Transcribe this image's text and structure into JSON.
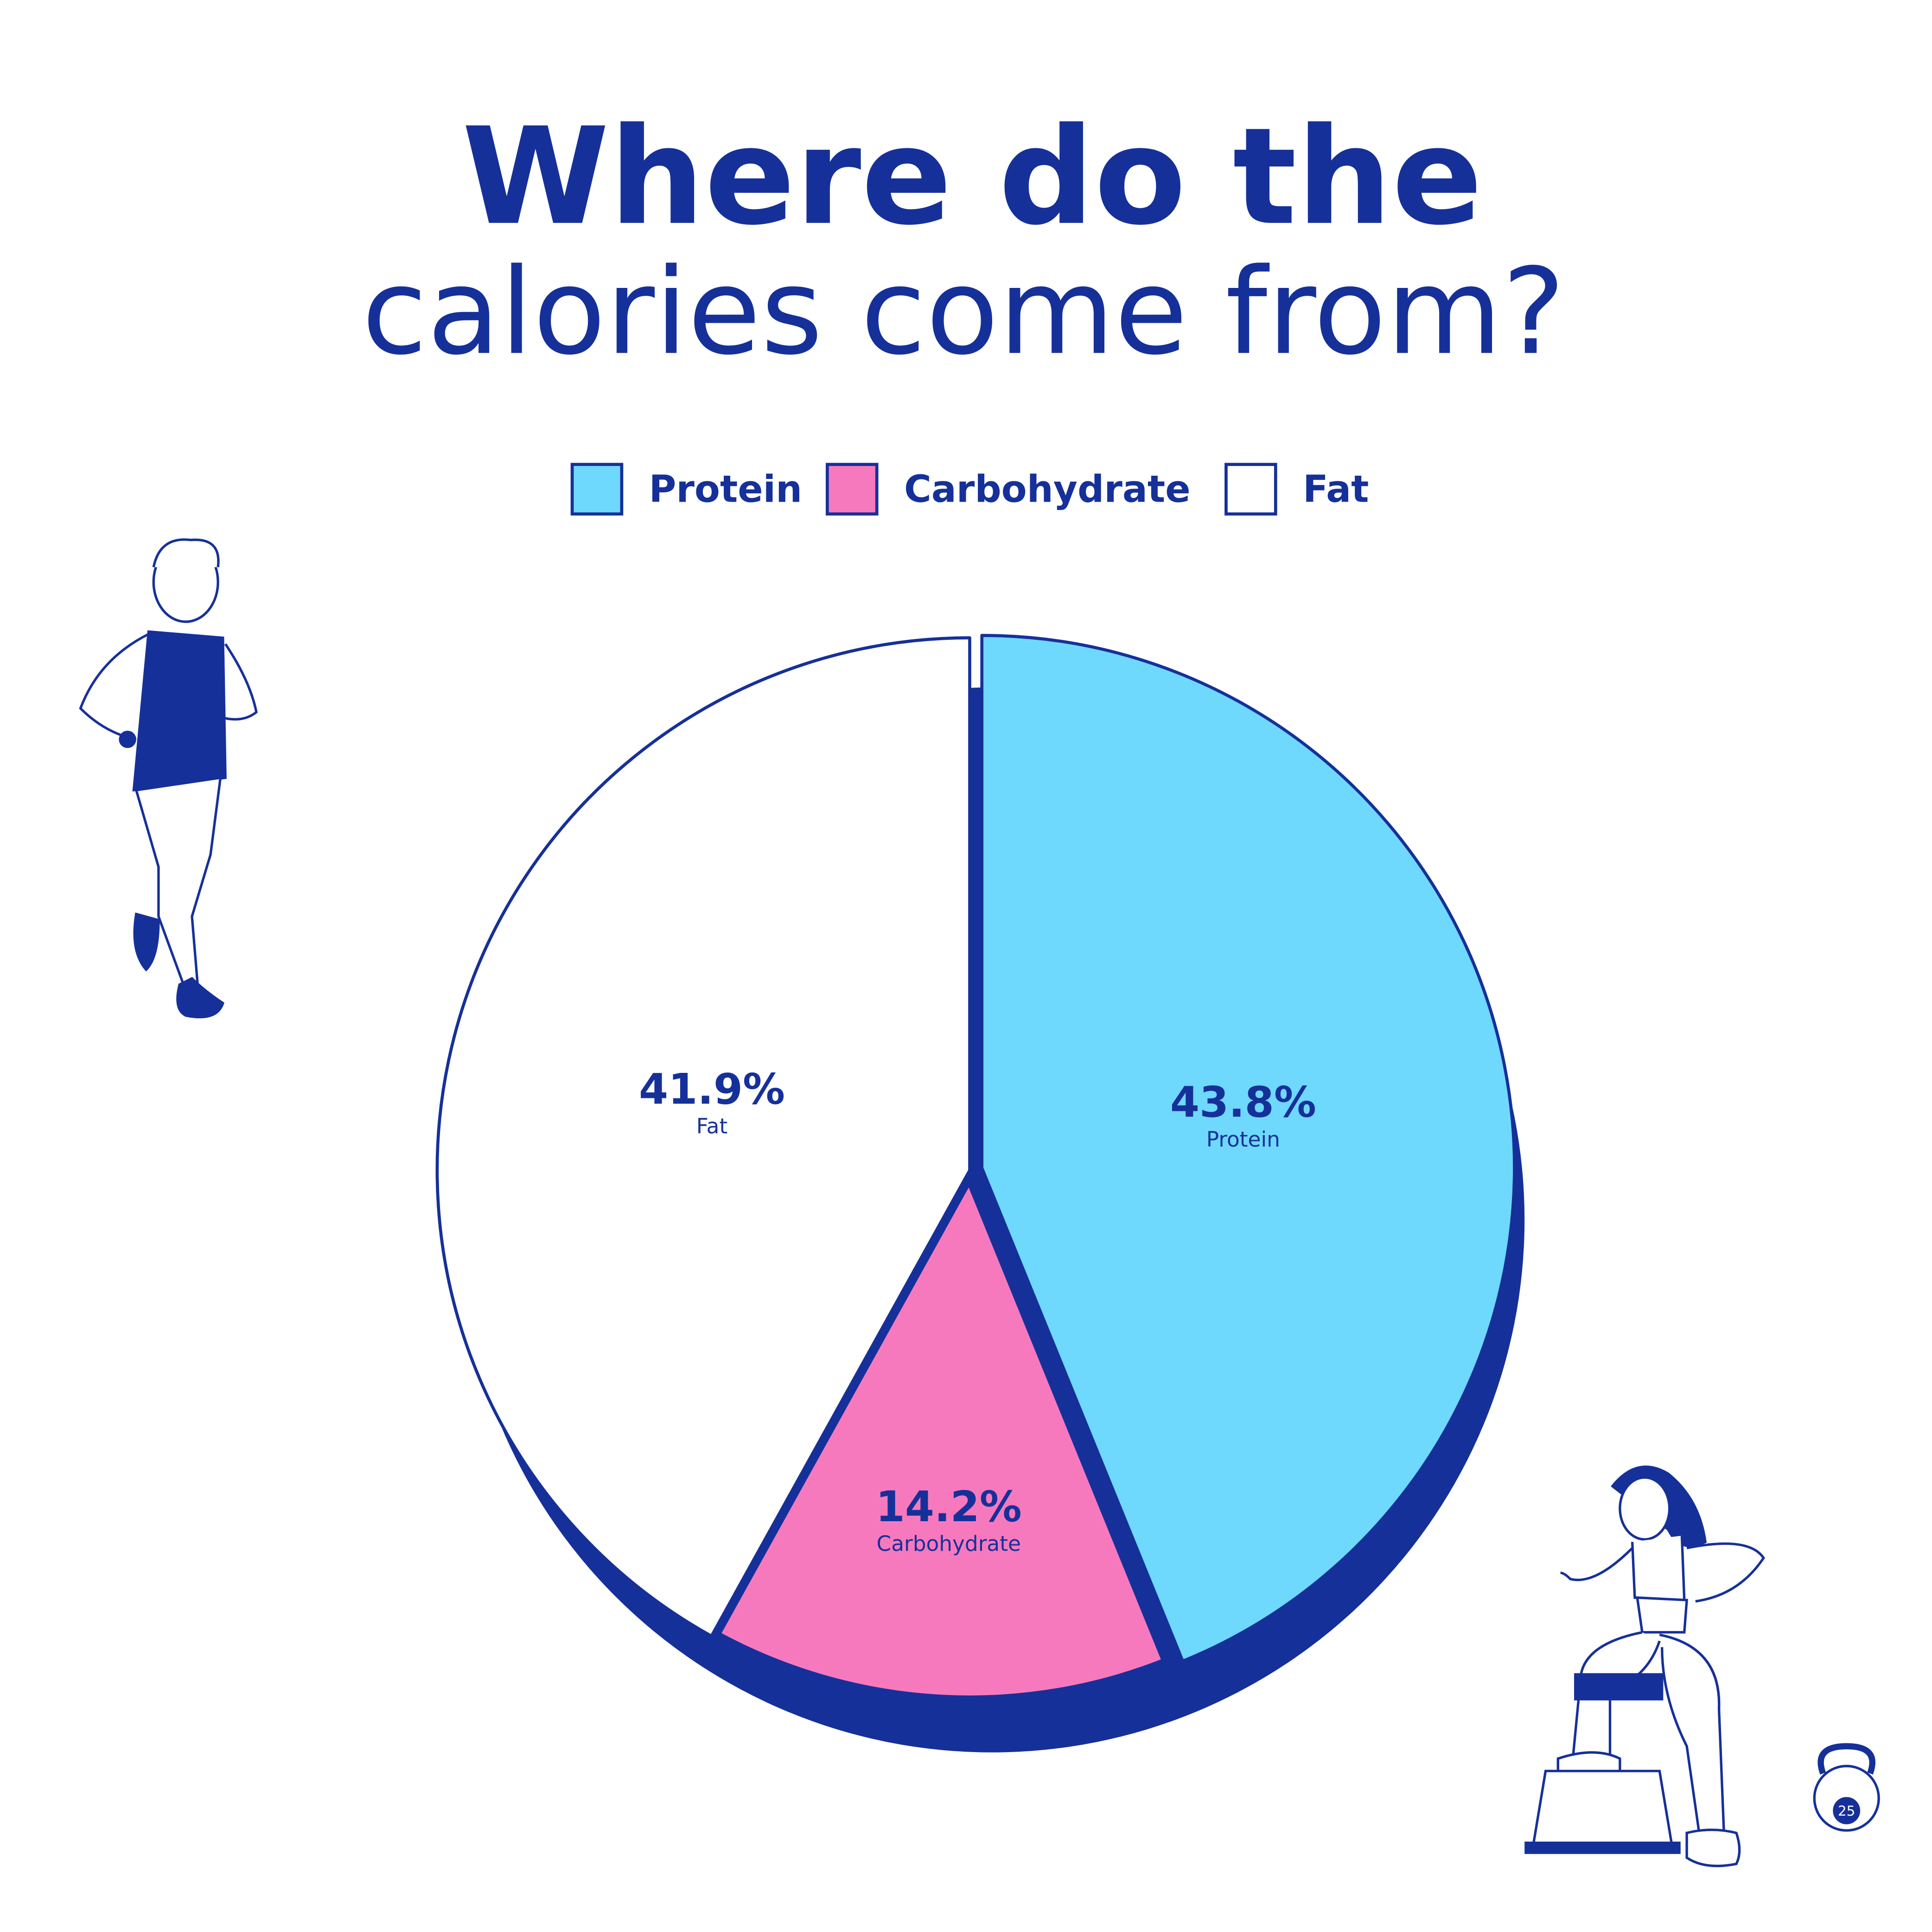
{
  "chart_data": {
    "type": "pie",
    "title": [
      "Where do the",
      "calories come from?"
    ],
    "categories": [
      "Protein",
      "Carbohydrate",
      "Fat"
    ],
    "values": [
      43.8,
      14.2,
      41.9
    ],
    "value_labels": [
      "43.8%",
      "14.2%",
      "41.9%"
    ],
    "colors": [
      "#6fd8fd",
      "#f779bd",
      "#ffffff"
    ],
    "legend": "top"
  },
  "kettlebell_label": "25"
}
